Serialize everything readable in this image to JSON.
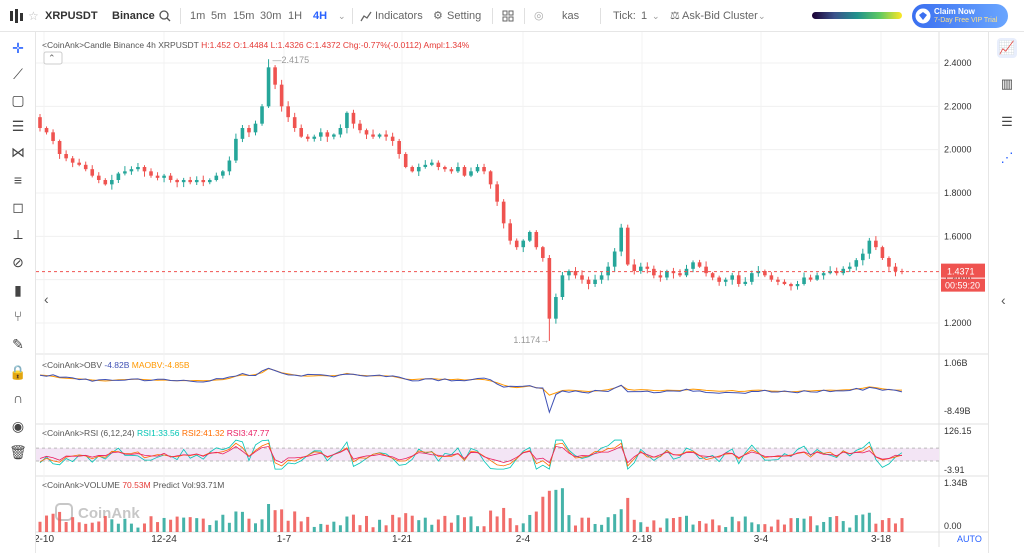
{
  "topbar": {
    "symbol": "XRPUSDT",
    "exchange": "Binance",
    "intervals": [
      "1m",
      "5m",
      "15m",
      "30m",
      "1H",
      "4H"
    ],
    "active_interval": "4H",
    "indicators_label": "Indicators",
    "setting_label": "Setting",
    "kas_label": "kas",
    "tick_label": "Tick:",
    "tick_value": "1",
    "cluster_label": "Ask-Bid Cluster",
    "claim_line1": "Claim Now",
    "claim_line2": "7-Day Free VIP Trial",
    "accent": "#2962ff"
  },
  "left_tools": [
    "crosshair-icon",
    "trendline-icon",
    "rectangle-icon",
    "fib-icon",
    "pattern-icon",
    "settings-lines-icon",
    "callout-icon",
    "ruler-icon",
    "magnet-brush-icon",
    "bars-icon",
    "fork-icon",
    "brush-icon",
    "lock-icon",
    "magnet-icon",
    "eye-icon",
    "trash-icon"
  ],
  "right_tools": [
    "chart-line-icon",
    "chart-bars-icon",
    "list-icon",
    "share-icon"
  ],
  "footer": {
    "auto_label": "AUTO"
  },
  "chart_data": {
    "type": "candlestick",
    "watermark": "CoinAnk",
    "main": {
      "legend_prefix": "<CoinAnk>",
      "legend_name": "Candle",
      "legend_symbol": "Binance 4h XRPUSDT",
      "legend_h": "H:1.452",
      "legend_o": "O:1.4484",
      "legend_l": "L:1.4326",
      "legend_c": "C:1.4372",
      "legend_chg": "Chg:-0.77%(-0.0112)",
      "legend_ampl": "Ampl:1.34%",
      "y_ticks": [
        "2.4000",
        "2.2000",
        "2.0000",
        "1.8000",
        "1.6000",
        "1.4000",
        "1.2000"
      ],
      "y_tick_values": [
        2.4,
        2.2,
        2.0,
        1.8,
        1.6,
        1.4,
        1.2
      ],
      "ylim": [
        1.08,
        2.52
      ],
      "high_label": "2.4175",
      "high_value": 2.4175,
      "low_label": "1.1174",
      "low_value": 1.1174,
      "last_price": "1.4371",
      "last_price_value": 1.4371,
      "countdown": "00:59:20",
      "up_color": "#26a69a",
      "down_color": "#ef5350"
    },
    "x_ticks": [
      "2-10",
      "12-24",
      "1-7",
      "1-21",
      "2-4",
      "2-18",
      "3-4",
      "3-18"
    ],
    "close_series": [
      2.1,
      2.08,
      2.04,
      1.98,
      1.96,
      1.94,
      1.93,
      1.91,
      1.88,
      1.86,
      1.84,
      1.86,
      1.89,
      1.9,
      1.91,
      1.92,
      1.9,
      1.88,
      1.87,
      1.88,
      1.86,
      1.85,
      1.86,
      1.85,
      1.86,
      1.85,
      1.86,
      1.88,
      1.9,
      1.95,
      2.05,
      2.1,
      2.08,
      2.12,
      2.2,
      2.38,
      2.3,
      2.2,
      2.15,
      2.1,
      2.06,
      2.05,
      2.06,
      2.08,
      2.06,
      2.07,
      2.1,
      2.17,
      2.12,
      2.09,
      2.07,
      2.06,
      2.07,
      2.06,
      2.04,
      1.98,
      1.92,
      1.9,
      1.92,
      1.93,
      1.94,
      1.92,
      1.91,
      1.9,
      1.92,
      1.88,
      1.9,
      1.92,
      1.9,
      1.84,
      1.76,
      1.66,
      1.58,
      1.55,
      1.58,
      1.62,
      1.55,
      1.5,
      1.22,
      1.32,
      1.42,
      1.44,
      1.42,
      1.4,
      1.38,
      1.4,
      1.42,
      1.46,
      1.53,
      1.64,
      1.47,
      1.44,
      1.46,
      1.45,
      1.42,
      1.41,
      1.44,
      1.43,
      1.42,
      1.45,
      1.48,
      1.46,
      1.43,
      1.41,
      1.39,
      1.4,
      1.42,
      1.38,
      1.39,
      1.43,
      1.44,
      1.42,
      1.4,
      1.39,
      1.38,
      1.37,
      1.38,
      1.41,
      1.4,
      1.42,
      1.43,
      1.44,
      1.43,
      1.45,
      1.46,
      1.49,
      1.52,
      1.58,
      1.55,
      1.5,
      1.46,
      1.44,
      1.4371
    ],
    "obv": {
      "legend_name": "OBV",
      "value_label": "-4.82B",
      "ma_label": "MAOBV:-4.85B",
      "y_ticks": [
        "1.06B",
        "-8.49B"
      ],
      "y_tick_values": [
        1.06,
        -8.49
      ],
      "obv_color": "#3f51b5",
      "ma_color": "#ff9800"
    },
    "rsi": {
      "legend_name": "RSI",
      "params": "(6,12,24)",
      "rsi1_label": "RSI1:33.56",
      "rsi2_label": "RSI2:41.32",
      "rsi3_label": "RSI3:47.77",
      "y_ticks": [
        "126.15",
        "-3.91"
      ],
      "y_tick_values": [
        126.15,
        -3.91
      ],
      "rsi1_color": "#00c4b4",
      "rsi2_color": "#ff6d00",
      "rsi3_color": "#e91e63",
      "band_upper": 70,
      "band_lower": 30
    },
    "volume": {
      "legend_name": "VOLUME",
      "value_label": "70.53M",
      "predict_label": "Predict Vol:93.71M",
      "y_ticks": [
        "1.34B",
        "0.00"
      ],
      "y_tick_values": [
        1.34,
        0
      ]
    }
  }
}
